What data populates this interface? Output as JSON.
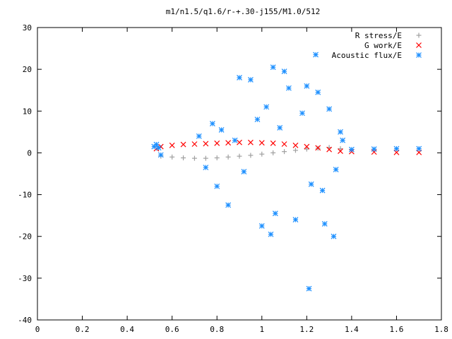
{
  "chart_data": {
    "type": "scatter",
    "title": "m1/n1.5/q1.6/r-+.30-j155/M1.0/512",
    "xlabel": "",
    "ylabel": "",
    "xlim": [
      0,
      1.8
    ],
    "ylim": [
      -40,
      30
    ],
    "xticks": [
      "0",
      "0.2",
      "0.4",
      "0.6",
      "0.8",
      "1",
      "1.2",
      "1.4",
      "1.6",
      "1.8"
    ],
    "yticks": [
      "30",
      "20",
      "10",
      "0",
      "-10",
      "-20",
      "-30",
      "-40"
    ],
    "legend_position": "top-right",
    "grid": false,
    "series": [
      {
        "name": "R stress/E",
        "marker": "plus",
        "color": "#a0a0a0",
        "x": [
          0.55,
          0.6,
          0.65,
          0.7,
          0.75,
          0.8,
          0.85,
          0.9,
          0.95,
          1.0,
          1.05,
          1.1,
          1.15,
          1.2,
          1.25,
          1.3,
          1.35
        ],
        "y": [
          -0.8,
          -1.0,
          -1.2,
          -1.3,
          -1.3,
          -1.2,
          -1.0,
          -0.8,
          -0.6,
          -0.3,
          0.0,
          0.3,
          0.6,
          0.9,
          1.1,
          1.3,
          1.0
        ]
      },
      {
        "name": "G work/E",
        "marker": "cross",
        "color": "#ff0000",
        "x": [
          0.53,
          0.55,
          0.6,
          0.65,
          0.7,
          0.75,
          0.8,
          0.85,
          0.9,
          0.95,
          1.0,
          1.05,
          1.1,
          1.15,
          1.2,
          1.25,
          1.3,
          1.35,
          1.4,
          1.5,
          1.6,
          1.7
        ],
        "y": [
          1.0,
          1.5,
          1.8,
          2.0,
          2.1,
          2.2,
          2.3,
          2.4,
          2.5,
          2.5,
          2.4,
          2.3,
          2.1,
          1.8,
          1.5,
          1.2,
          0.8,
          0.4,
          0.3,
          0.2,
          0.1,
          0.1
        ]
      },
      {
        "name": "Acoustic flux/E",
        "marker": "asterisk",
        "color": "#1e90ff",
        "x": [
          0.52,
          0.53,
          0.54,
          0.55,
          0.72,
          0.75,
          0.78,
          0.8,
          0.82,
          0.85,
          0.88,
          0.9,
          0.92,
          0.95,
          0.98,
          1.0,
          1.02,
          1.04,
          1.05,
          1.06,
          1.08,
          1.1,
          1.12,
          1.15,
          1.18,
          1.2,
          1.21,
          1.22,
          1.24,
          1.25,
          1.27,
          1.28,
          1.3,
          1.32,
          1.33,
          1.35,
          1.36,
          1.4,
          1.5,
          1.6,
          1.7
        ],
        "y": [
          1.5,
          2.0,
          1.2,
          -0.5,
          4.0,
          -3.5,
          7.0,
          -8.0,
          5.5,
          -12.5,
          3.0,
          18.0,
          -4.5,
          17.5,
          8.0,
          -17.5,
          11.0,
          -19.5,
          20.5,
          -14.5,
          6.0,
          19.5,
          15.5,
          -16.0,
          9.5,
          16.0,
          -32.5,
          -7.5,
          23.5,
          14.5,
          -9.0,
          -17.0,
          10.5,
          -20.0,
          -4.0,
          5.0,
          3.0,
          0.8,
          0.9,
          1.0,
          1.0
        ]
      }
    ]
  }
}
